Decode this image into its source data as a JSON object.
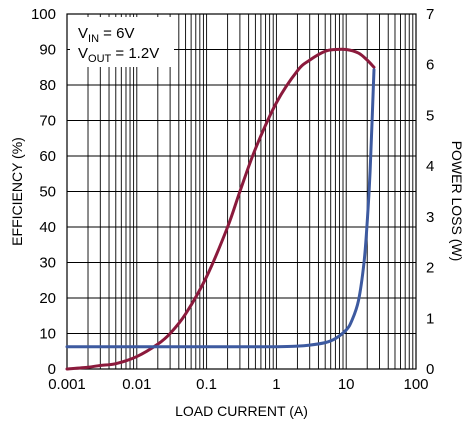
{
  "chart_data": {
    "type": "line",
    "xlabel": "LOAD CURRENT (A)",
    "ylabel_left": "EFFICIENCY (%)",
    "ylabel_right": "POWER LOSS (W)",
    "x_scale": "log",
    "xlim": [
      0.001,
      100
    ],
    "ylim_left": [
      0,
      100
    ],
    "ylim_right": [
      0,
      7
    ],
    "x_tick_labels": [
      "0.001",
      "0.01",
      "0.1",
      "1",
      "10",
      "100"
    ],
    "y_left_tick_labels": [
      "0",
      "10",
      "20",
      "30",
      "40",
      "50",
      "60",
      "70",
      "80",
      "90",
      "100"
    ],
    "y_right_tick_labels": [
      "0",
      "1",
      "2",
      "3",
      "4",
      "5",
      "6",
      "7"
    ],
    "grid": true,
    "annotation": {
      "vin": {
        "main": "V",
        "sub": "IN",
        "rest": " = 6V"
      },
      "vout": {
        "main": "V",
        "sub": "OUT",
        "rest": " = 1.2V"
      }
    },
    "series": [
      {
        "axis": "left",
        "color": "#8b1a3c",
        "x": [
          0.001,
          0.002,
          0.003,
          0.005,
          0.01,
          0.02,
          0.03,
          0.05,
          0.1,
          0.2,
          0.3,
          0.5,
          1,
          2,
          3,
          5,
          7,
          10,
          15,
          20,
          25
        ],
        "y": [
          0,
          0.5,
          1,
          1.5,
          3.5,
          7,
          10,
          15.5,
          26,
          40,
          50,
          62,
          75,
          84,
          87,
          89.5,
          90,
          90,
          89,
          87,
          85
        ]
      },
      {
        "axis": "right",
        "color": "#3d5aa0",
        "x": [
          0.001,
          0.01,
          0.1,
          1,
          2,
          3,
          5,
          7,
          10,
          12,
          15,
          18,
          20,
          22,
          25
        ],
        "y": [
          0.44,
          0.44,
          0.44,
          0.44,
          0.45,
          0.47,
          0.52,
          0.6,
          0.77,
          0.95,
          1.35,
          2.1,
          2.9,
          3.9,
          5.9
        ]
      }
    ]
  }
}
